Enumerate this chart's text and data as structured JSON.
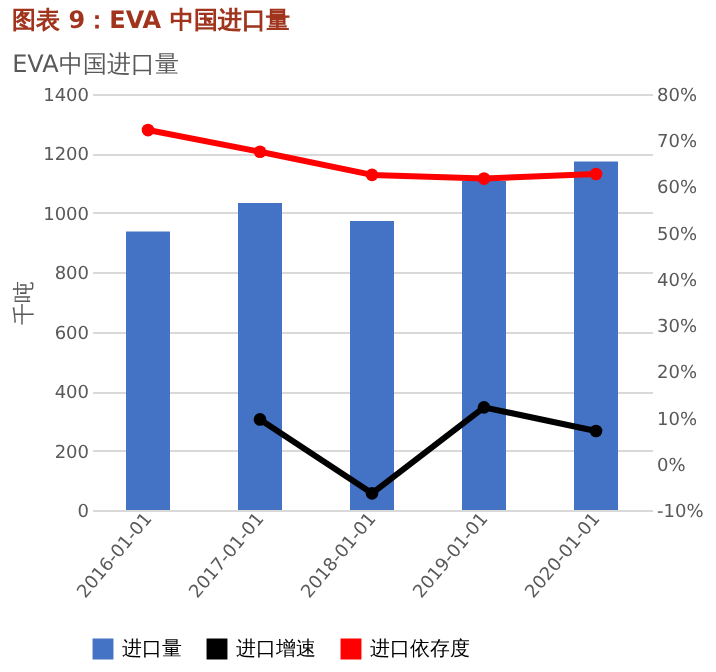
{
  "chart_data": {
    "type": "bar",
    "title": "图表 9：EVA 中国进口量",
    "subtitle": "EVA中国进口量",
    "ylabel": "千吨",
    "categories": [
      "2016-01-01",
      "2017-01-01",
      "2018-01-01",
      "2019-01-01",
      "2020-01-01"
    ],
    "series": [
      {
        "name": "进口量",
        "color": "#4472c4",
        "values": [
          937,
          1033,
          973,
          1107,
          1173
        ]
      },
      {
        "name": "进口增速",
        "type": "line",
        "axis": "y2",
        "color": "#000000",
        "values": [
          null,
          9.6,
          -6.4,
          12.2,
          7.1
        ]
      },
      {
        "name": "进口依存度",
        "type": "line",
        "axis": "y2",
        "color": "#ff0000",
        "values": [
          72.2,
          67.5,
          62.5,
          61.7,
          62.7
        ]
      }
    ],
    "ylim": [
      0,
      1400
    ],
    "yticks": [
      0,
      200,
      400,
      600,
      800,
      1000,
      1200,
      1400
    ],
    "y2lim": [
      -10,
      80
    ],
    "y2ticks": [
      {
        "value": -10,
        "label": "-10%"
      },
      {
        "value": 0,
        "label": "0%"
      },
      {
        "value": 10,
        "label": "10%"
      },
      {
        "value": 20,
        "label": "20%"
      },
      {
        "value": 30,
        "label": "30%"
      },
      {
        "value": 40,
        "label": "40%"
      },
      {
        "value": 50,
        "label": "50%"
      },
      {
        "value": 60,
        "label": "60%"
      },
      {
        "value": 70,
        "label": "70%"
      },
      {
        "value": 80,
        "label": "80%"
      }
    ],
    "grid": "y",
    "legend": "bottom",
    "marker": "circle",
    "line_style": "solid"
  }
}
